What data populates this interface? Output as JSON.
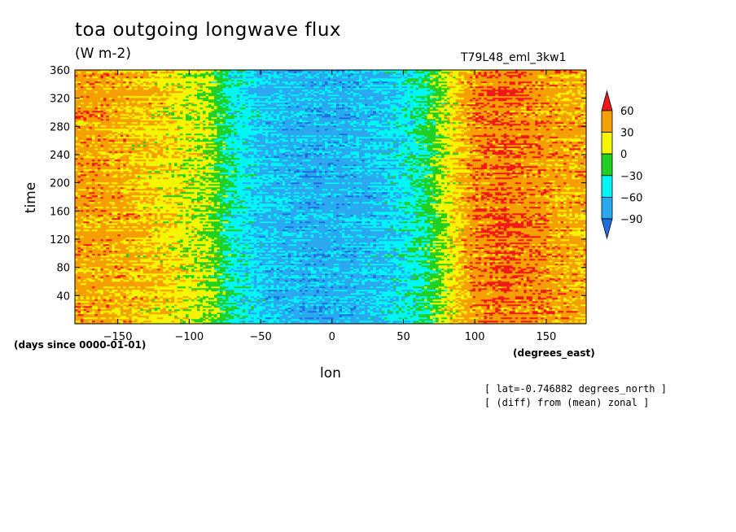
{
  "header": {
    "title": "toa outgoing longwave flux",
    "units": "(W m-2)",
    "run_name": "T79L48_eml_3kw1"
  },
  "notes": [
    "[ lat=-0.746882 degrees_north ]",
    "[ (diff) from (mean) zonal ]"
  ],
  "chart_data": {
    "type": "heatmap",
    "xlabel": "lon",
    "ylabel": "time",
    "x_units": "(degrees_east)",
    "y_units": "(days since 0000-01-01)",
    "xlim": [
      -180,
      178
    ],
    "ylim": [
      0,
      360
    ],
    "x_ticks": [
      -150,
      -100,
      -50,
      0,
      50,
      100,
      150
    ],
    "y_ticks": [
      40,
      80,
      120,
      160,
      200,
      240,
      280,
      320,
      360
    ],
    "colorbar": {
      "levels": [
        -90,
        -60,
        -30,
        0,
        30,
        60
      ],
      "colors": [
        "#1e6ee0",
        "#2aa8f0",
        "#00f5f5",
        "#22d022",
        "#f5f500",
        "#f5a000",
        "#f01818"
      ],
      "extend": "both"
    },
    "zonal_profile": {
      "lon": [
        -180,
        -160,
        -140,
        -120,
        -100,
        -85,
        -70,
        -50,
        -30,
        -10,
        10,
        30,
        50,
        65,
        75,
        85,
        100,
        120,
        140,
        160,
        178
      ],
      "value": [
        42,
        40,
        34,
        26,
        14,
        2,
        -38,
        -62,
        -70,
        -72,
        -68,
        -62,
        -48,
        -28,
        -5,
        20,
        48,
        58,
        52,
        42,
        38
      ]
    },
    "grid": false
  }
}
